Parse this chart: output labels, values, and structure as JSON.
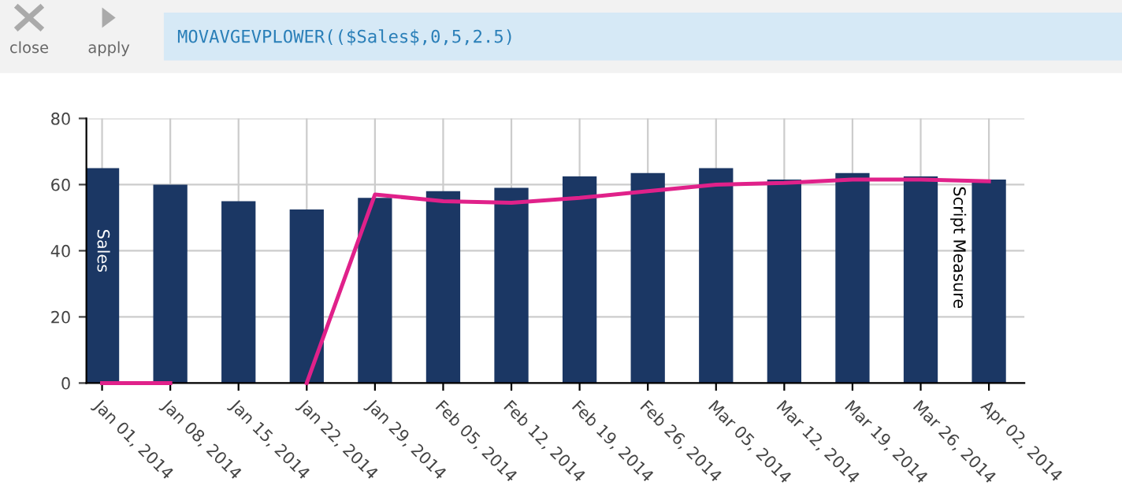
{
  "chart_data": {
    "type": "bar",
    "annotations": [
      "close",
      "apply",
      "MOVAVGEVPLOWER(($Sales$,0,5,2.5)"
    ],
    "categories": [
      "Jan 01, 2014",
      "Jan 08, 2014",
      "Jan 15, 2014",
      "Jan 22, 2014",
      "Jan 29, 2014",
      "Feb 05, 2014",
      "Feb 12, 2014",
      "Feb 19, 2014",
      "Feb 26, 2014",
      "Mar 05, 2014",
      "Mar 12, 2014",
      "Mar 19, 2014",
      "Mar 26, 2014",
      "Apr 02, 2014"
    ],
    "series": [
      {
        "name": "Sales",
        "color": "#1b3764",
        "values": [
          65,
          60,
          55,
          52.5,
          56,
          58,
          59,
          62.5,
          63.5,
          65,
          61.5,
          63.5,
          62.5,
          61.5
        ]
      },
      {
        "name": "Script Measure",
        "type": "line",
        "color": "#e0218a",
        "values": [
          0,
          0,
          null,
          0,
          57,
          55,
          54.5,
          56,
          58,
          60,
          60.5,
          61.5,
          61.5,
          61
        ]
      }
    ],
    "ylim": [
      0,
      80
    ],
    "yticks": [
      0,
      20,
      40,
      60,
      80
    ],
    "grid": true
  }
}
